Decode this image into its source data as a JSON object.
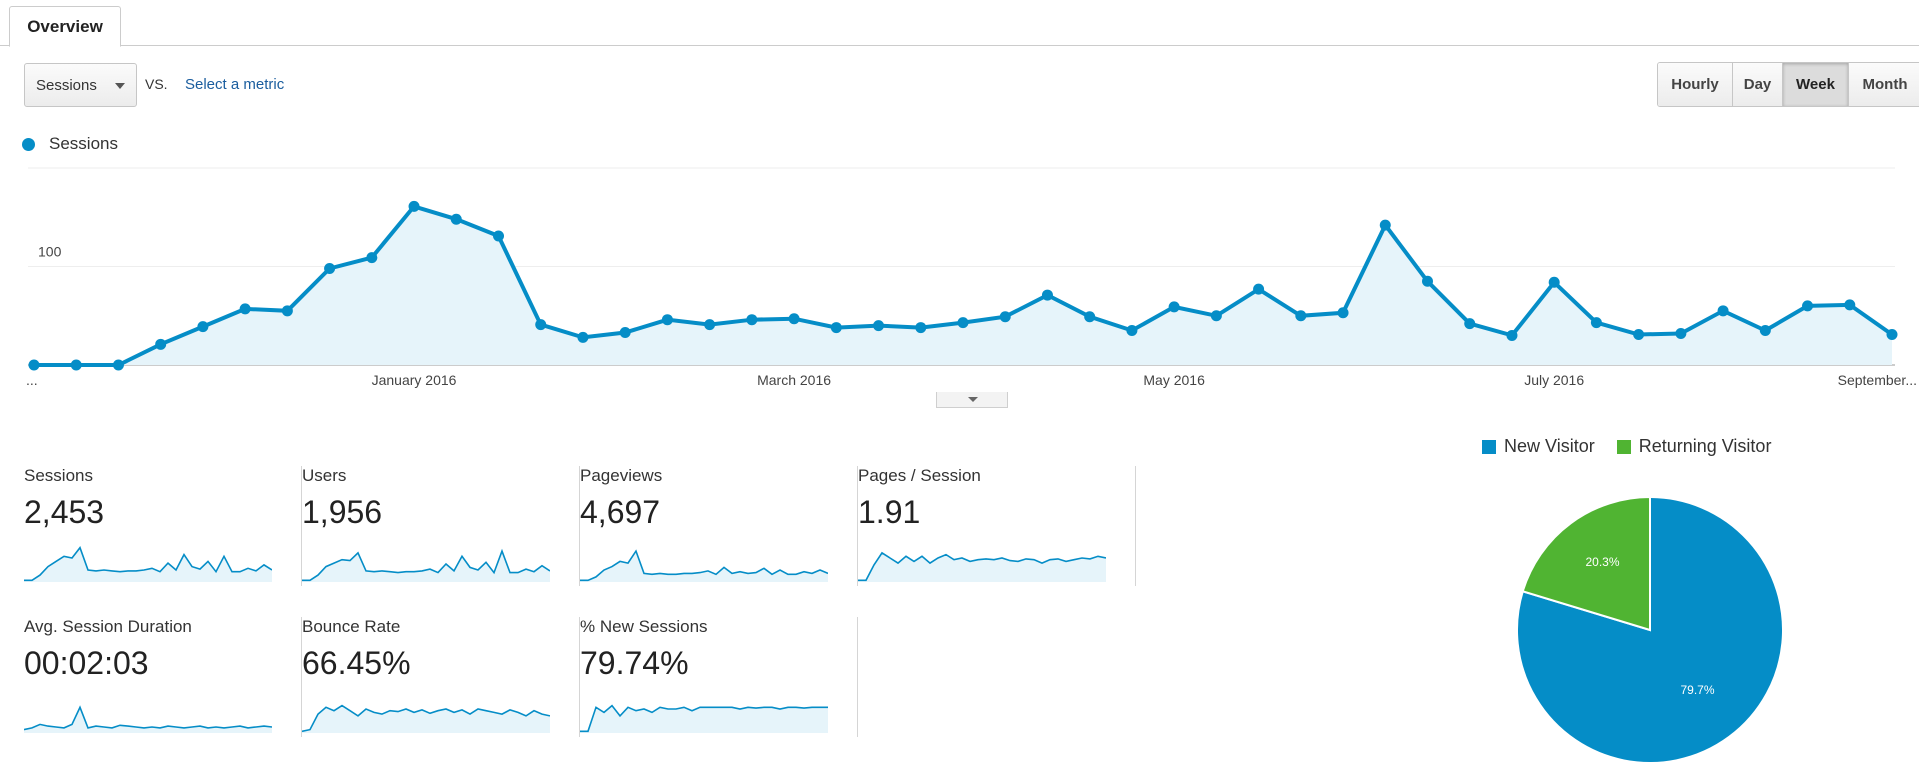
{
  "tabs": [
    {
      "label": "Overview"
    }
  ],
  "controls": {
    "metric_select": "Sessions",
    "vs_label": "VS.",
    "select_metric_link": "Select a metric",
    "granularity": [
      {
        "label": "Hourly",
        "active": false
      },
      {
        "label": "Day",
        "active": false
      },
      {
        "label": "Week",
        "active": true
      },
      {
        "label": "Month",
        "active": false
      }
    ]
  },
  "colors": {
    "primary": "#058dc7",
    "fill": "#e6f4fa",
    "returning": "#50b432"
  },
  "chart_data": [
    {
      "type": "area",
      "series": [
        {
          "name": "Sessions",
          "values": [
            0,
            0,
            0,
            21,
            39,
            57,
            55,
            98,
            109,
            161,
            148,
            131,
            41,
            28,
            33,
            46,
            41,
            46,
            47,
            38,
            40,
            38,
            43,
            49,
            71,
            49,
            35,
            59,
            50,
            77,
            50,
            53,
            142,
            85,
            42,
            30,
            84,
            43,
            31,
            32,
            55,
            35,
            60,
            61,
            31
          ]
        }
      ],
      "x_tick_labels": [
        {
          "label": "...",
          "index": 0
        },
        {
          "label": "January 2016",
          "index": 9
        },
        {
          "label": "March 2016",
          "index": 18
        },
        {
          "label": "May 2016",
          "index": 27
        },
        {
          "label": "July 2016",
          "index": 36
        },
        {
          "label": "September...",
          "index": 44
        }
      ],
      "y_ticks": [
        100,
        200
      ],
      "ylim": [
        0,
        200
      ],
      "legend": "top-left",
      "grid": true
    },
    {
      "type": "pie",
      "slices": [
        {
          "name": "New Visitor",
          "value": 79.7,
          "label": "79.7%",
          "color": "#058dc7"
        },
        {
          "name": "Returning Visitor",
          "value": 20.3,
          "label": "20.3%",
          "color": "#50b432"
        }
      ],
      "legend": "top"
    }
  ],
  "metrics": [
    {
      "label": "Sessions",
      "value": "2,453",
      "spark": [
        2,
        2,
        8,
        18,
        24,
        30,
        28,
        40,
        14,
        13,
        14,
        13,
        12,
        13,
        13,
        14,
        16,
        12,
        22,
        14,
        32,
        18,
        15,
        24,
        12,
        30,
        12,
        12,
        16,
        13,
        20,
        14
      ]
    },
    {
      "label": "Users",
      "value": "1,956",
      "spark": [
        2,
        2,
        8,
        18,
        22,
        26,
        25,
        34,
        13,
        12,
        13,
        12,
        11,
        12,
        12,
        13,
        15,
        11,
        21,
        13,
        30,
        17,
        14,
        23,
        11,
        36,
        11,
        11,
        15,
        12,
        19,
        13
      ]
    },
    {
      "label": "Pageviews",
      "value": "4,697",
      "spark": [
        2,
        2,
        6,
        14,
        18,
        24,
        22,
        36,
        10,
        9,
        10,
        9,
        9,
        10,
        10,
        11,
        13,
        9,
        17,
        10,
        12,
        10,
        11,
        16,
        9,
        14,
        9,
        9,
        12,
        10,
        14,
        10
      ]
    },
    {
      "label": "Pages / Session",
      "value": "1.91",
      "spark": [
        2,
        2,
        20,
        34,
        28,
        22,
        30,
        24,
        30,
        22,
        28,
        32,
        26,
        28,
        24,
        26,
        27,
        26,
        28,
        25,
        24,
        27,
        26,
        22,
        26,
        27,
        24,
        26,
        28,
        27,
        30,
        28
      ]
    },
    {
      "label": "Avg. Session Duration",
      "value": "00:02:03",
      "spark": [
        4,
        6,
        10,
        8,
        7,
        6,
        10,
        30,
        6,
        8,
        7,
        6,
        9,
        8,
        7,
        6,
        7,
        6,
        8,
        7,
        6,
        7,
        8,
        6,
        7,
        6,
        7,
        8,
        6,
        7,
        8,
        7
      ]
    },
    {
      "label": "Bounce Rate",
      "value": "66.45%",
      "spark": [
        2,
        4,
        22,
        30,
        26,
        32,
        26,
        20,
        28,
        24,
        22,
        26,
        25,
        28,
        24,
        27,
        23,
        26,
        28,
        24,
        27,
        22,
        28,
        26,
        24,
        22,
        27,
        24,
        20,
        26,
        22,
        20
      ]
    },
    {
      "label": "% New Sessions",
      "value": "79.74%",
      "spark": [
        2,
        2,
        30,
        24,
        32,
        20,
        30,
        26,
        28,
        24,
        30,
        28,
        28,
        30,
        26,
        30,
        30,
        30,
        30,
        30,
        28,
        30,
        29,
        30,
        30,
        28,
        30,
        30,
        29,
        30,
        30,
        30
      ]
    }
  ]
}
